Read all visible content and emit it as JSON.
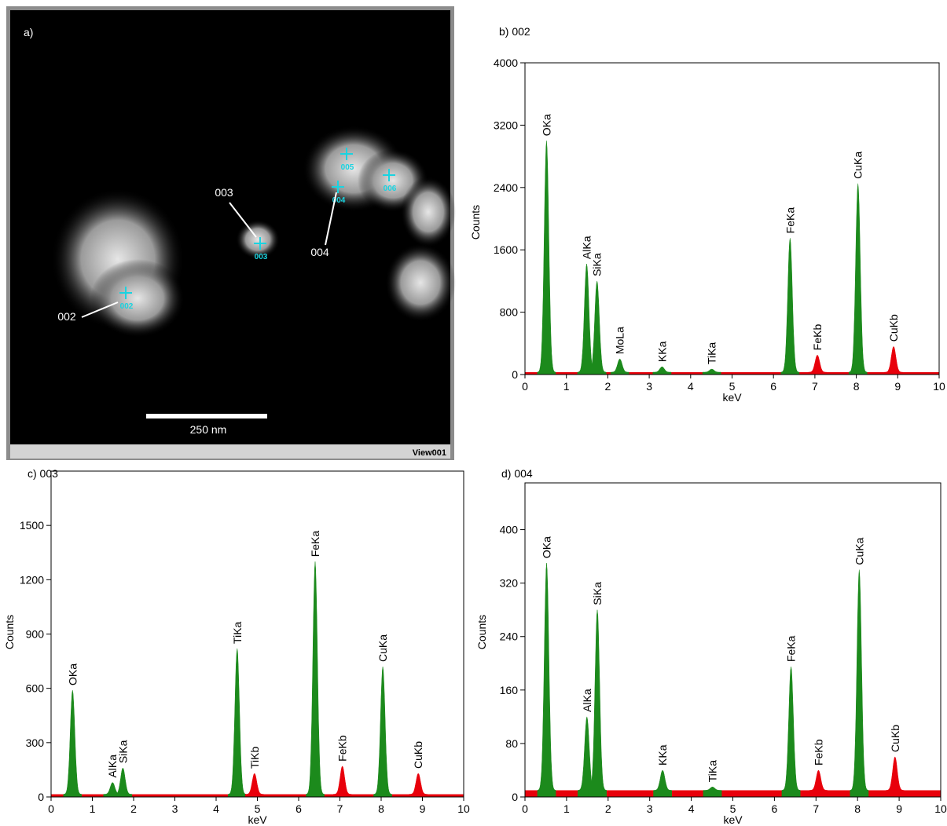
{
  "image": {
    "label": "a)",
    "scale_bar": "250 nm",
    "view": "View001",
    "markers": [
      "002",
      "003",
      "004",
      "005",
      "006"
    ],
    "callouts": [
      "002",
      "003",
      "004"
    ]
  },
  "chart_data": [
    {
      "type": "spectrum",
      "title": "b)  002",
      "x_label": "keV",
      "y_label": "Counts",
      "xlim": [
        0,
        10
      ],
      "xticks": [
        0,
        1,
        2,
        3,
        4,
        5,
        6,
        7,
        8,
        9,
        10
      ],
      "ylim": [
        0,
        4000
      ],
      "yticks": [
        0,
        800,
        1600,
        2400,
        3200,
        4000
      ],
      "background": 30,
      "background_color": "#e8000b",
      "peaks": [
        {
          "name": "OKa",
          "x": 0.52,
          "counts": 3000,
          "color": "#1c8a1c"
        },
        {
          "name": "AlKa",
          "x": 1.49,
          "counts": 1420,
          "color": "#1c8a1c"
        },
        {
          "name": "SiKa",
          "x": 1.74,
          "counts": 1200,
          "color": "#1c8a1c"
        },
        {
          "name": "MoLa",
          "x": 2.29,
          "counts": 200,
          "color": "#1c8a1c"
        },
        {
          "name": "KKa",
          "x": 3.31,
          "counts": 100,
          "color": "#1c8a1c"
        },
        {
          "name": "TiKa",
          "x": 4.51,
          "counts": 70,
          "color": "#1c8a1c"
        },
        {
          "name": "FeKa",
          "x": 6.4,
          "counts": 1750,
          "color": "#1c8a1c"
        },
        {
          "name": "FeKb",
          "x": 7.06,
          "counts": 250,
          "color": "#e8000b"
        },
        {
          "name": "CuKa",
          "x": 8.04,
          "counts": 2450,
          "color": "#1c8a1c"
        },
        {
          "name": "CuKb",
          "x": 8.9,
          "counts": 360,
          "color": "#e8000b"
        }
      ]
    },
    {
      "type": "spectrum",
      "title": "c)  003",
      "x_label": "keV",
      "y_label": "Counts",
      "xlim": [
        0,
        10
      ],
      "xticks": [
        0,
        1,
        2,
        3,
        4,
        5,
        6,
        7,
        8,
        9,
        10
      ],
      "ylim": [
        0,
        1800
      ],
      "yticks": [
        0,
        300,
        600,
        900,
        1200,
        1500
      ],
      "background": 15,
      "background_color": "#e8000b",
      "peaks": [
        {
          "name": "OKa",
          "x": 0.52,
          "counts": 590,
          "color": "#1c8a1c"
        },
        {
          "name": "AlKa",
          "x": 1.49,
          "counts": 80,
          "color": "#1c8a1c"
        },
        {
          "name": "SiKa",
          "x": 1.74,
          "counts": 160,
          "color": "#1c8a1c"
        },
        {
          "name": "TiKa",
          "x": 4.51,
          "counts": 820,
          "color": "#1c8a1c"
        },
        {
          "name": "TiKb",
          "x": 4.93,
          "counts": 130,
          "color": "#e8000b"
        },
        {
          "name": "FeKa",
          "x": 6.4,
          "counts": 1300,
          "color": "#1c8a1c"
        },
        {
          "name": "FeKb",
          "x": 7.06,
          "counts": 170,
          "color": "#e8000b"
        },
        {
          "name": "CuKa",
          "x": 8.04,
          "counts": 720,
          "color": "#1c8a1c"
        },
        {
          "name": "CuKb",
          "x": 8.9,
          "counts": 130,
          "color": "#e8000b"
        }
      ]
    },
    {
      "type": "spectrum",
      "title": "d)  004",
      "x_label": "keV",
      "y_label": "Counts",
      "xlim": [
        0,
        10
      ],
      "xticks": [
        0,
        1,
        2,
        3,
        4,
        5,
        6,
        7,
        8,
        9,
        10
      ],
      "ylim": [
        0,
        470
      ],
      "yticks": [
        0,
        80,
        160,
        240,
        320,
        400
      ],
      "background": 10,
      "background_color": "#e8000b",
      "peaks": [
        {
          "name": "OKa",
          "x": 0.52,
          "counts": 350,
          "color": "#1c8a1c"
        },
        {
          "name": "AlKa",
          "x": 1.49,
          "counts": 120,
          "color": "#1c8a1c"
        },
        {
          "name": "SiKa",
          "x": 1.74,
          "counts": 280,
          "color": "#1c8a1c"
        },
        {
          "name": "KKa",
          "x": 3.31,
          "counts": 40,
          "color": "#1c8a1c"
        },
        {
          "name": "TiKa",
          "x": 4.51,
          "counts": 15,
          "color": "#1c8a1c"
        },
        {
          "name": "FeKa",
          "x": 6.4,
          "counts": 195,
          "color": "#1c8a1c"
        },
        {
          "name": "FeKb",
          "x": 7.06,
          "counts": 40,
          "color": "#e8000b"
        },
        {
          "name": "CuKa",
          "x": 8.04,
          "counts": 340,
          "color": "#1c8a1c"
        },
        {
          "name": "CuKb",
          "x": 8.9,
          "counts": 60,
          "color": "#e8000b"
        }
      ]
    }
  ]
}
